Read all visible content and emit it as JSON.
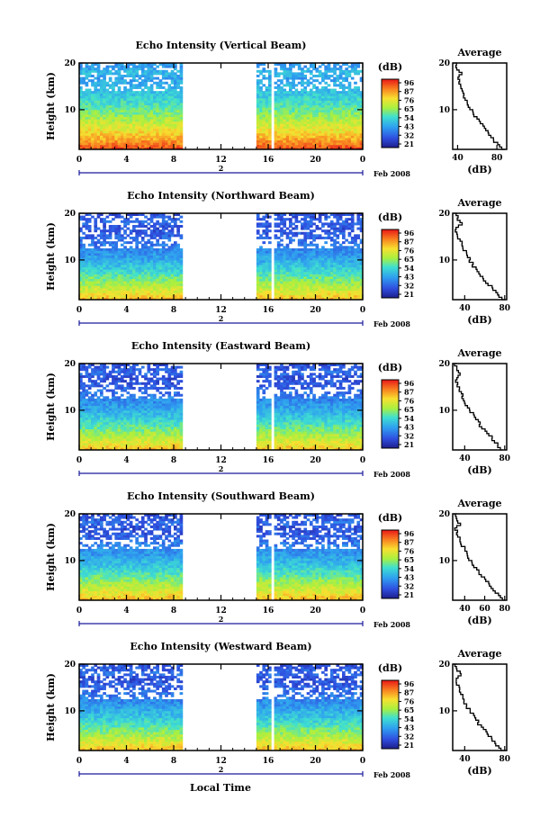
{
  "figure": {
    "x_title": "Local Time",
    "month_label": "Feb 2008",
    "day_label": "2",
    "y_title": "Height (km)",
    "colorbar_unit": "(dB)",
    "colorbar_ticks": [
      "96",
      "87",
      "76",
      "65",
      "54",
      "43",
      "32",
      "21"
    ],
    "profile_title": "Average",
    "profile_xlabel": "(dB)"
  },
  "chart_data": [
    {
      "type": "heatmap",
      "title": "Echo Intensity (Vertical Beam)",
      "ylabel": "Height (km)",
      "xlabel": "Local Time",
      "x_ticks": [
        "0",
        "4",
        "8",
        "12",
        "16",
        "20",
        "0"
      ],
      "y_ticks": [
        "20",
        "10"
      ],
      "xlim": [
        0,
        24
      ],
      "ylim": [
        1.5,
        20
      ],
      "data_gaps": [
        [
          8.7,
          15
        ],
        [
          16.2,
          16.5
        ]
      ],
      "color_range_db": [
        21,
        96
      ],
      "profile": {
        "title": "Average",
        "xlabel": "(dB)",
        "x_ticks": [
          "40",
          "80"
        ],
        "xlim": [
          35,
          90
        ],
        "height_km": [
          1.5,
          3,
          5,
          7,
          9,
          11,
          13,
          15,
          17,
          18,
          19,
          20
        ],
        "avg_db": [
          88,
          80,
          72,
          65,
          58,
          52,
          47,
          43,
          40,
          45,
          39,
          38
        ]
      }
    },
    {
      "type": "heatmap",
      "title": "Echo Intensity (Northward Beam)",
      "ylabel": "Height (km)",
      "xlabel": "Local Time",
      "x_ticks": [
        "0",
        "4",
        "8",
        "12",
        "16",
        "20",
        "0"
      ],
      "y_ticks": [
        "20",
        "10"
      ],
      "xlim": [
        0,
        24
      ],
      "ylim": [
        1.5,
        20
      ],
      "data_gaps": [
        [
          8.7,
          15
        ],
        [
          16.2,
          16.5
        ]
      ],
      "color_range_db": [
        21,
        96
      ],
      "profile": {
        "title": "Average",
        "xlabel": "(dB)",
        "x_ticks": [
          "40",
          "80"
        ],
        "xlim": [
          28,
          82
        ],
        "height_km": [
          1.5,
          3,
          5,
          7,
          9,
          11,
          13,
          15,
          17,
          18,
          19,
          20
        ],
        "avg_db": [
          80,
          72,
          64,
          56,
          49,
          43,
          38,
          34,
          31,
          36,
          33,
          31
        ]
      }
    },
    {
      "type": "heatmap",
      "title": "Echo Intensity (Eastward Beam)",
      "ylabel": "Height (km)",
      "xlabel": "Local Time",
      "x_ticks": [
        "0",
        "4",
        "8",
        "12",
        "16",
        "20",
        "0"
      ],
      "y_ticks": [
        "20",
        "10"
      ],
      "xlim": [
        0,
        24
      ],
      "ylim": [
        1.5,
        20
      ],
      "data_gaps": [
        [
          8.7,
          15
        ],
        [
          16.2,
          16.5
        ]
      ],
      "color_range_db": [
        21,
        96
      ],
      "profile": {
        "title": "Average",
        "xlabel": "(dB)",
        "x_ticks": [
          "40",
          "80"
        ],
        "xlim": [
          28,
          82
        ],
        "height_km": [
          1.5,
          3,
          5,
          7,
          9,
          11,
          13,
          15,
          17,
          18,
          19,
          20
        ],
        "avg_db": [
          79,
          72,
          64,
          56,
          49,
          43,
          38,
          34,
          31,
          36,
          33,
          31
        ]
      }
    },
    {
      "type": "heatmap",
      "title": "Echo Intensity (Southward Beam)",
      "ylabel": "Height (km)",
      "xlabel": "Local Time",
      "x_ticks": [
        "0",
        "4",
        "8",
        "12",
        "16",
        "20",
        "0"
      ],
      "y_ticks": [
        "20",
        "10"
      ],
      "xlim": [
        0,
        24
      ],
      "ylim": [
        1.5,
        20
      ],
      "data_gaps": [
        [
          8.7,
          15
        ],
        [
          16.2,
          16.5
        ]
      ],
      "color_range_db": [
        21,
        96
      ],
      "profile": {
        "title": "Average",
        "xlabel": "(dB)",
        "x_ticks": [
          "40",
          "60",
          "80"
        ],
        "xlim": [
          28,
          82
        ],
        "height_km": [
          1.5,
          3,
          5,
          7,
          9,
          11,
          13,
          15,
          17,
          18,
          19,
          20
        ],
        "avg_db": [
          80,
          73,
          65,
          57,
          50,
          44,
          39,
          34,
          31,
          36,
          33,
          31
        ]
      }
    },
    {
      "type": "heatmap",
      "title": "Echo Intensity (Westward Beam)",
      "ylabel": "Height (km)",
      "xlabel": "Local Time",
      "x_ticks": [
        "0",
        "4",
        "8",
        "12",
        "16",
        "20",
        "0"
      ],
      "y_ticks": [
        "20",
        "10"
      ],
      "xlim": [
        0,
        24
      ],
      "ylim": [
        1.5,
        20
      ],
      "data_gaps": [
        [
          8.7,
          15
        ],
        [
          16.2,
          16.5
        ]
      ],
      "color_range_db": [
        21,
        96
      ],
      "profile": {
        "title": "Average",
        "xlabel": "(dB)",
        "x_ticks": [
          "40",
          "80"
        ],
        "xlim": [
          28,
          82
        ],
        "height_km": [
          1.5,
          3,
          5,
          7,
          9,
          11,
          13,
          15,
          17,
          18,
          19,
          20
        ],
        "avg_db": [
          80,
          72,
          64,
          56,
          49,
          43,
          38,
          34,
          31,
          36,
          33,
          31
        ]
      }
    }
  ]
}
